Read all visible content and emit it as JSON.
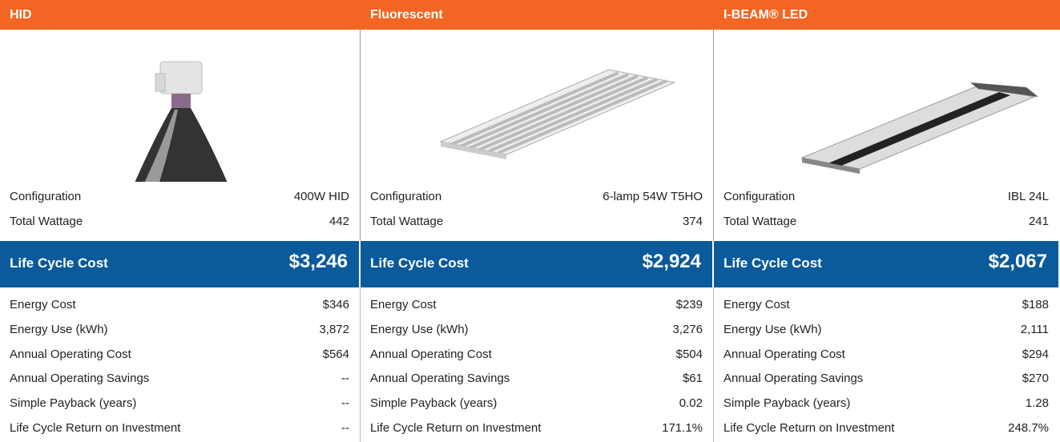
{
  "columns": [
    {
      "title": "HID",
      "specs": [
        {
          "label": "Configuration",
          "value": "400W HID"
        },
        {
          "label": "Total Wattage",
          "value": "442"
        }
      ],
      "lcc": {
        "label": "Life Cycle Cost",
        "value": "$3,246"
      },
      "metrics": [
        {
          "label": "Energy Cost",
          "value": "$346"
        },
        {
          "label": "Energy Use (kWh)",
          "value": "3,872"
        },
        {
          "label": "Annual Operating Cost",
          "value": "$564"
        },
        {
          "label": "Annual Operating Savings",
          "value": "--"
        },
        {
          "label": "Simple Payback (years)",
          "value": "--"
        },
        {
          "label": "Life Cycle Return on Investment",
          "value": "--"
        }
      ]
    },
    {
      "title": "Fluorescent",
      "specs": [
        {
          "label": "Configuration",
          "value": "6-lamp 54W T5HO"
        },
        {
          "label": "Total Wattage",
          "value": "374"
        }
      ],
      "lcc": {
        "label": "Life Cycle Cost",
        "value": "$2,924"
      },
      "metrics": [
        {
          "label": "Energy Cost",
          "value": "$239"
        },
        {
          "label": "Energy Use (kWh)",
          "value": "3,276"
        },
        {
          "label": "Annual Operating Cost",
          "value": "$504"
        },
        {
          "label": "Annual Operating Savings",
          "value": "$61"
        },
        {
          "label": "Simple Payback (years)",
          "value": "0.02"
        },
        {
          "label": "Life Cycle Return on Investment",
          "value": "171.1%"
        }
      ]
    },
    {
      "title": "I-BEAM® LED",
      "specs": [
        {
          "label": "Configuration",
          "value": "IBL 24L"
        },
        {
          "label": "Total Wattage",
          "value": "241"
        }
      ],
      "lcc": {
        "label": "Life Cycle Cost",
        "value": "$2,067"
      },
      "metrics": [
        {
          "label": "Energy Cost",
          "value": "$188"
        },
        {
          "label": "Energy Use (kWh)",
          "value": "2,111"
        },
        {
          "label": "Annual Operating Cost",
          "value": "$294"
        },
        {
          "label": "Annual Operating Savings",
          "value": "$270"
        },
        {
          "label": "Simple Payback (years)",
          "value": "1.28"
        },
        {
          "label": "Life Cycle Return on Investment",
          "value": "248.7%"
        }
      ]
    }
  ]
}
